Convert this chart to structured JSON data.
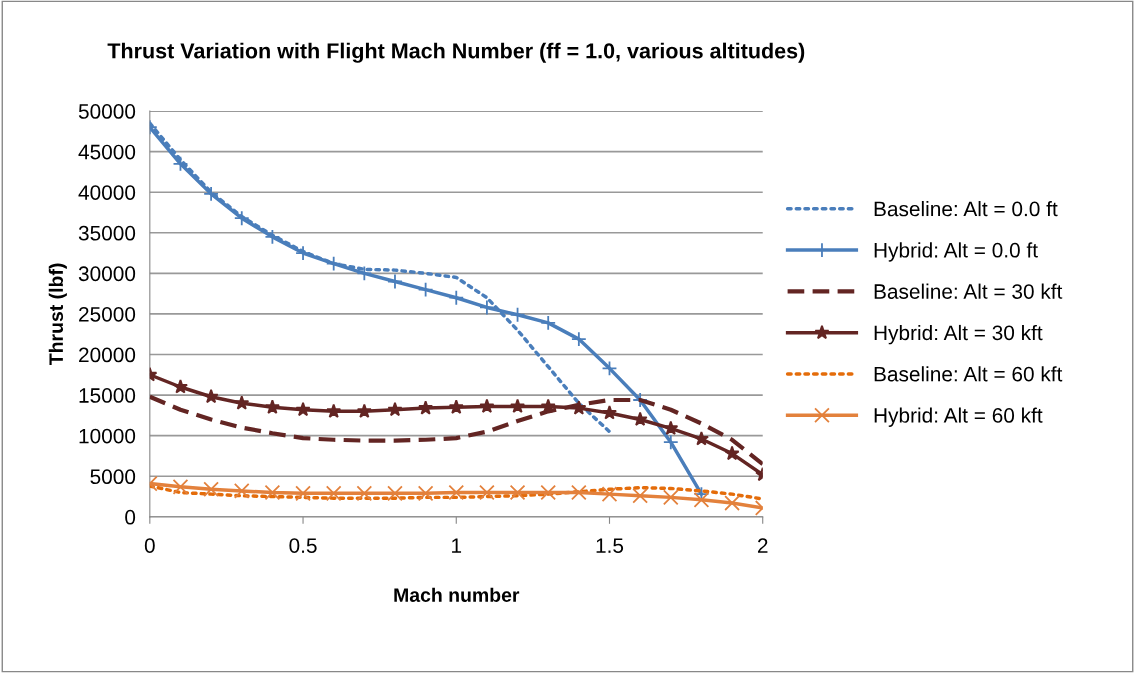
{
  "chart_data": {
    "type": "line",
    "title": "Thrust Variation with Flight Mach Number (ff = 1.0, various altitudes)",
    "xlabel": "Mach number",
    "ylabel": "Thrust (lbf)",
    "x": [
      0,
      0.1,
      0.2,
      0.3,
      0.4,
      0.5,
      0.6,
      0.7,
      0.8,
      0.9,
      1.0,
      1.1,
      1.2,
      1.3,
      1.4,
      1.5,
      1.6,
      1.7,
      1.8,
      1.9,
      2.0
    ],
    "series": [
      {
        "name": "Baseline: Alt = 0.0 ft",
        "color": "#4a7ebb",
        "line_style": "dotted",
        "marker": "none",
        "values": [
          48500,
          44000,
          40000,
          37000,
          34700,
          32700,
          31200,
          30500,
          30400,
          30000,
          29500,
          27000,
          23000,
          18500,
          14000,
          10500,
          null,
          null,
          null,
          null,
          null
        ]
      },
      {
        "name": "Hybrid: Alt = 0.0 ft",
        "color": "#4a7ebb",
        "line_style": "solid",
        "marker": "plus",
        "values": [
          48000,
          43500,
          39800,
          36800,
          34500,
          32500,
          31200,
          30000,
          29000,
          28000,
          27000,
          25800,
          24900,
          23900,
          21900,
          18300,
          14400,
          9200,
          2800,
          null,
          null
        ]
      },
      {
        "name": "Baseline: Alt = 30 kft",
        "color": "#632523",
        "line_style": "dashed",
        "marker": "none",
        "values": [
          14800,
          13200,
          12000,
          11000,
          10300,
          9700,
          9500,
          9400,
          9400,
          9500,
          9700,
          10500,
          11800,
          13000,
          13800,
          14400,
          14400,
          13200,
          11500,
          9500,
          6500
        ]
      },
      {
        "name": "Hybrid: Alt = 30 kft",
        "color": "#632523",
        "line_style": "solid",
        "marker": "star",
        "values": [
          17500,
          16000,
          14800,
          14000,
          13500,
          13200,
          13000,
          13000,
          13200,
          13400,
          13500,
          13600,
          13600,
          13600,
          13400,
          12800,
          12000,
          10900,
          9600,
          7800,
          5200
        ]
      },
      {
        "name": "Baseline: Alt = 60 kft",
        "color": "#e46c0a",
        "line_style": "dotted",
        "marker": "none",
        "values": [
          3800,
          3000,
          2800,
          2600,
          2500,
          2400,
          2300,
          2300,
          2300,
          2400,
          2400,
          2500,
          2600,
          2800,
          3100,
          3400,
          3600,
          3500,
          3200,
          2800,
          2200
        ]
      },
      {
        "name": "Hybrid: Alt = 60 kft",
        "color": "#e3813c",
        "line_style": "solid",
        "marker": "cross",
        "values": [
          4100,
          3700,
          3400,
          3200,
          3000,
          2900,
          2900,
          2900,
          2900,
          2900,
          3000,
          3000,
          3000,
          3000,
          3000,
          2800,
          2600,
          2400,
          2100,
          1700,
          1100
        ]
      }
    ],
    "xlim": [
      0,
      2
    ],
    "xticks": [
      0,
      0.5,
      1,
      1.5,
      2
    ],
    "ylim": [
      0,
      50000
    ],
    "yticks": [
      0,
      5000,
      10000,
      15000,
      20000,
      25000,
      30000,
      35000,
      40000,
      45000,
      50000
    ],
    "grid": "y",
    "legend": "right"
  }
}
